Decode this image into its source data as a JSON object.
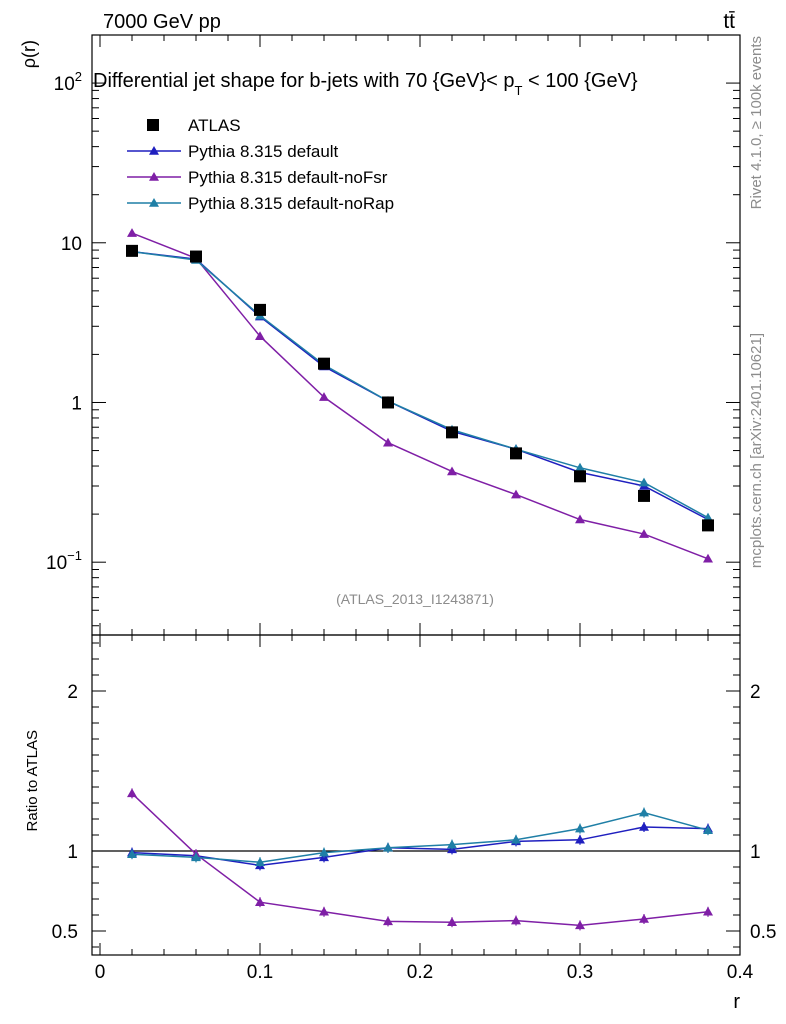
{
  "chart_data": {
    "type": "line",
    "header": {
      "process_left": "7000 GeV pp",
      "process_right": "tt̄"
    },
    "title": "Differential jet shape for b-jets with 70 {GeV}< p_T < 100 {GeV}",
    "title_parts": {
      "main": "Differential jet shape for b-jets with 70 {GeV}< p",
      "sub": "T",
      "tail": " < 100 {GeV}"
    },
    "side_labels": {
      "rivet": "Rivet 4.1.0, ≥ 100k events",
      "mcplots": "mcplots.cern.ch [arXiv:2401.10621]"
    },
    "watermark": "(ATLAS_2013_I1243871)",
    "xlabel": "r",
    "ylabel_top": "ρ(r)",
    "ylabel_bottom": "Ratio to ATLAS",
    "xlim": [
      -0.005,
      0.4
    ],
    "ylim_top": [
      0.035,
      200
    ],
    "ylim_bottom": [
      0.35,
      2.35
    ],
    "yscale_top": "log",
    "x_ticks": [
      {
        "v": 0,
        "label": "0"
      },
      {
        "v": 0.1,
        "label": "0.1"
      },
      {
        "v": 0.2,
        "label": "0.2"
      },
      {
        "v": 0.3,
        "label": "0.3"
      },
      {
        "v": 0.4,
        "label": "0.4"
      }
    ],
    "y_ticks_top": [
      {
        "v": 0.1,
        "base": "10",
        "exp": "−1"
      },
      {
        "v": 1,
        "base": "1",
        "exp": ""
      },
      {
        "v": 10,
        "base": "10",
        "exp": ""
      },
      {
        "v": 100,
        "base": "10",
        "exp": "2"
      }
    ],
    "y_ticks_bottom": [
      {
        "v": 0.5,
        "label": "0.5"
      },
      {
        "v": 1,
        "label": "1"
      },
      {
        "v": 2,
        "label": "2"
      }
    ],
    "x": [
      0.02,
      0.06,
      0.1,
      0.14,
      0.18,
      0.22,
      0.26,
      0.3,
      0.34,
      0.38
    ],
    "data": {
      "name": "ATLAS",
      "values": [
        8.9,
        8.2,
        3.8,
        1.75,
        1.0,
        0.65,
        0.48,
        0.345,
        0.26,
        0.17
      ]
    },
    "series": [
      {
        "name": "Pythia 8.315 default",
        "color": "#1f1fbf",
        "values": [
          8.8,
          7.9,
          3.45,
          1.68,
          1.02,
          0.66,
          0.51,
          0.365,
          0.3,
          0.185
        ]
      },
      {
        "name": "Pythia 8.315 default-noFsr",
        "color": "#7f1fa6",
        "values": [
          11.5,
          8.0,
          2.6,
          1.08,
          0.56,
          0.37,
          0.265,
          0.185,
          0.15,
          0.105
        ]
      },
      {
        "name": "Pythia 8.315 default-noRap",
        "color": "#1f7fa6",
        "values": [
          8.8,
          7.8,
          3.5,
          1.72,
          1.02,
          0.675,
          0.51,
          0.39,
          0.315,
          0.19
        ]
      }
    ],
    "ratios": [
      [
        0.99,
        0.97,
        0.91,
        0.96,
        1.02,
        1.01,
        1.06,
        1.07,
        1.15,
        1.14
      ],
      [
        1.36,
        0.98,
        0.68,
        0.62,
        0.56,
        0.555,
        0.565,
        0.535,
        0.575,
        0.62
      ],
      [
        0.98,
        0.96,
        0.93,
        0.99,
        1.02,
        1.04,
        1.07,
        1.14,
        1.24,
        1.13
      ]
    ]
  }
}
